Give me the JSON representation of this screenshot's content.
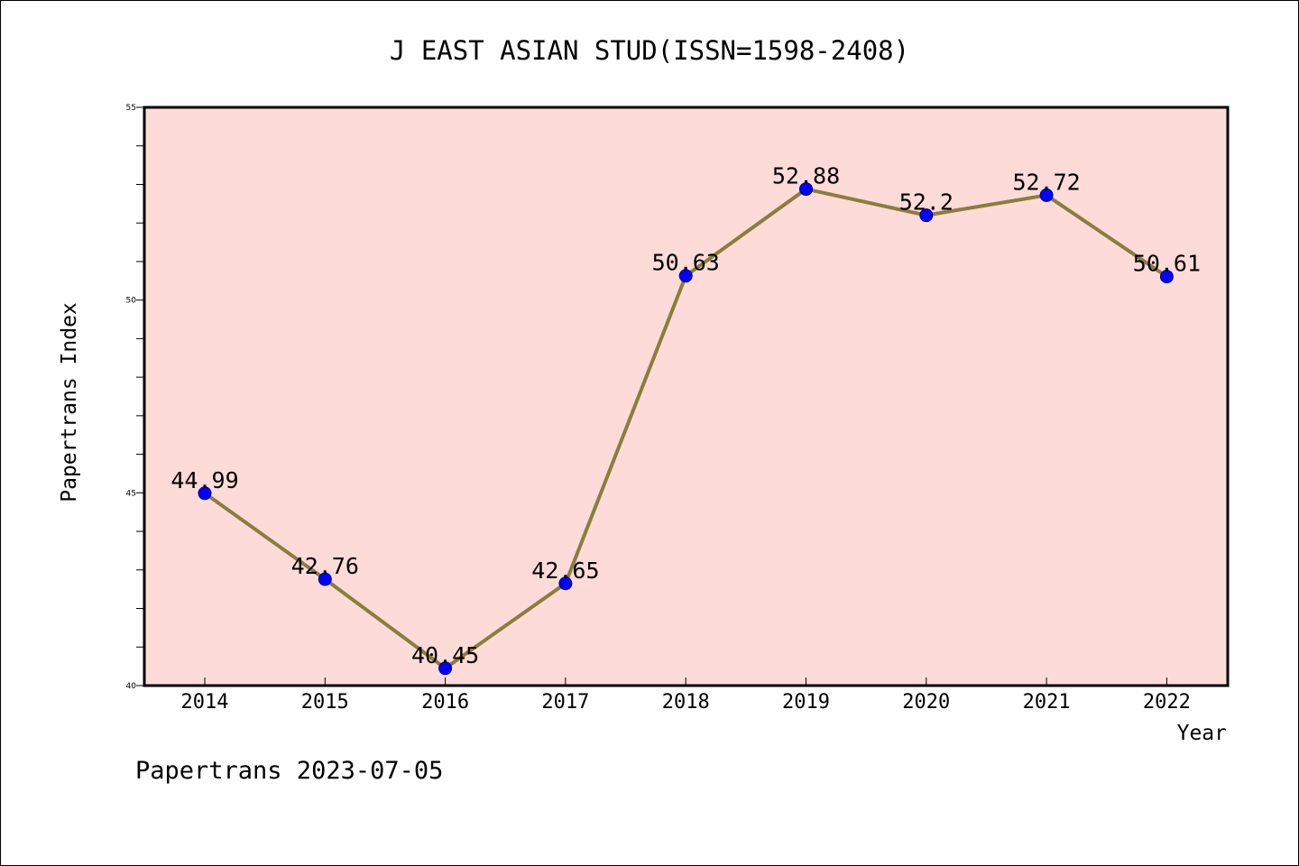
{
  "chart_data": {
    "type": "line",
    "title": "J EAST ASIAN STUD(ISSN=1598-2408)",
    "xlabel": "Year",
    "ylabel": "Papertrans Index",
    "categories": [
      "2014",
      "2015",
      "2016",
      "2017",
      "2018",
      "2019",
      "2020",
      "2021",
      "2022"
    ],
    "values": [
      44.99,
      42.76,
      40.45,
      42.65,
      50.63,
      52.88,
      52.2,
      52.72,
      50.61
    ],
    "data_labels": [
      "44.99",
      "42.76",
      "40.45",
      "42.65",
      "50.63",
      "52.88",
      "52.2",
      "52.72",
      "50.61"
    ],
    "ylim": [
      40,
      55
    ],
    "y_ticks": [
      "40",
      "45",
      "50",
      "55"
    ],
    "y_tick_values": [
      40,
      45,
      50,
      55
    ],
    "y_minor_step": 1,
    "grid": false,
    "legend": "none",
    "colors": {
      "plot_background": "#fddbd8",
      "line": "#8c7d3c",
      "marker_fill": "#0000ff",
      "marker_stroke": "#000080",
      "axis": "#000000"
    },
    "marker": "circle-icon"
  },
  "footer": {
    "text": "Papertrans 2023-07-05"
  }
}
